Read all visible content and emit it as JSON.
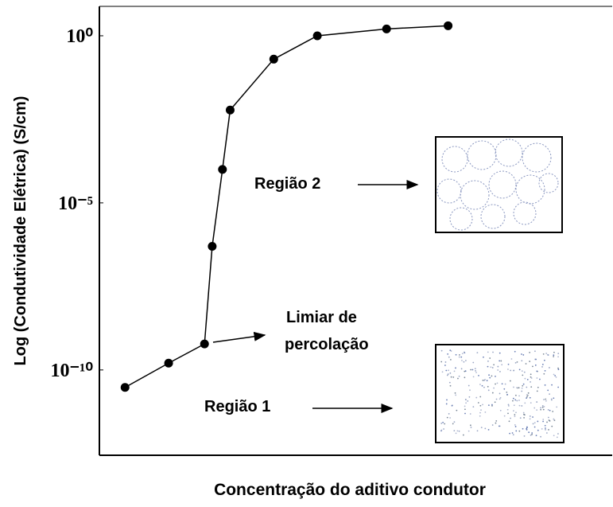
{
  "chart_data": {
    "type": "line",
    "x_label": "Concentração do aditivo condutor",
    "y_label": "Log (Condutividade Elétrica) (S/cm)",
    "x": [
      5,
      13.5,
      20.5,
      22,
      24,
      25.5,
      34,
      42.5,
      56,
      68
    ],
    "series": [
      {
        "color": "#000000",
        "values": [
          3e-11,
          1.6e-10,
          6e-10,
          5e-07,
          0.0001,
          0.006,
          0.2,
          1,
          1.6,
          2
        ]
      }
    ],
    "xlim": [
      0,
      100
    ],
    "ylim": [
      2.8e-13,
      6.8
    ],
    "log_y": true,
    "yticks": [
      {
        "value": 1,
        "label": "10⁰"
      },
      {
        "value": 1e-05,
        "label": "10⁻⁵"
      },
      {
        "value": 1e-10,
        "label": "10⁻¹⁰"
      }
    ],
    "annotations": [
      "Região 2",
      "Limiar de",
      "percolação",
      "Região 1"
    ]
  }
}
